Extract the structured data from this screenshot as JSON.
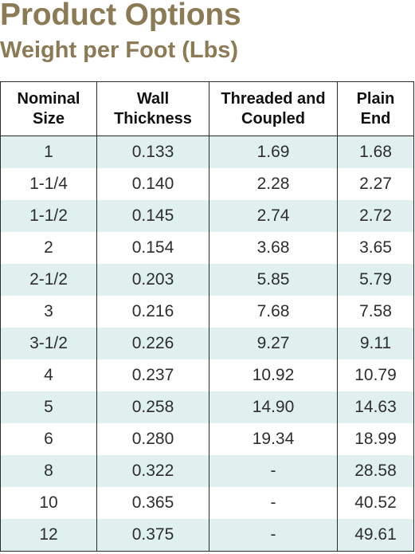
{
  "title": "Product Options",
  "subtitle": "Weight per Foot (Lbs)",
  "table": {
    "headers": [
      "Nominal\nSize",
      "Wall\nThickness",
      "Threaded and\nCoupled",
      "Plain\nEnd"
    ],
    "rows": [
      [
        "1",
        "0.133",
        "1.69",
        "1.68"
      ],
      [
        "1-1/4",
        "0.140",
        "2.28",
        "2.27"
      ],
      [
        "1-1/2",
        "0.145",
        "2.74",
        "2.72"
      ],
      [
        "2",
        "0.154",
        "3.68",
        "3.65"
      ],
      [
        "2-1/2",
        "0.203",
        "5.85",
        "5.79"
      ],
      [
        "3",
        "0.216",
        "7.68",
        "7.58"
      ],
      [
        "3-1/2",
        "0.226",
        "9.27",
        "9.11"
      ],
      [
        "4",
        "0.237",
        "10.92",
        "10.79"
      ],
      [
        "5",
        "0.258",
        "14.90",
        "14.63"
      ],
      [
        "6",
        "0.280",
        "19.34",
        "18.99"
      ],
      [
        "8",
        "0.322",
        "-",
        "28.58"
      ],
      [
        "10",
        "0.365",
        "-",
        "40.52"
      ],
      [
        "12",
        "0.375",
        "-",
        "49.61"
      ]
    ]
  },
  "colors": {
    "heading": "#8c7a55",
    "stripe": "#dff0ef",
    "border": "#2a2a2a"
  }
}
